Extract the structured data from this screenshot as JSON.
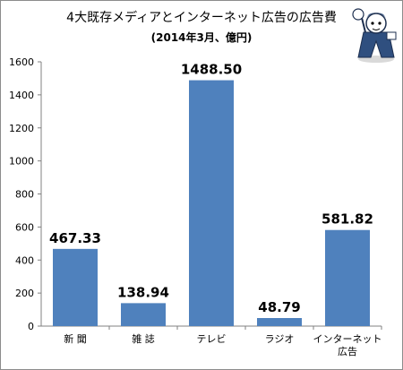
{
  "chart_data": {
    "type": "bar",
    "title": "4大既存メディアとインターネット広告の広告費",
    "subtitle": "(2014年3月、億円)",
    "categories": [
      "新 聞",
      "雑 誌",
      "テレビ",
      "ラジオ",
      [
        "インターネット",
        "広告"
      ]
    ],
    "values": [
      467.33,
      138.94,
      1488.5,
      48.79,
      581.82
    ],
    "data_labels": [
      "467.33",
      "138.94",
      "1488.50",
      "48.79",
      "581.82"
    ],
    "y_ticks": [
      "0",
      "200",
      "400",
      "600",
      "800",
      "1000",
      "1200",
      "1400",
      "1600"
    ],
    "ylim": [
      0,
      1600
    ],
    "grid": false,
    "legend": "none",
    "bar_color": "#4f81bd",
    "mascot": "mascot-icon"
  }
}
